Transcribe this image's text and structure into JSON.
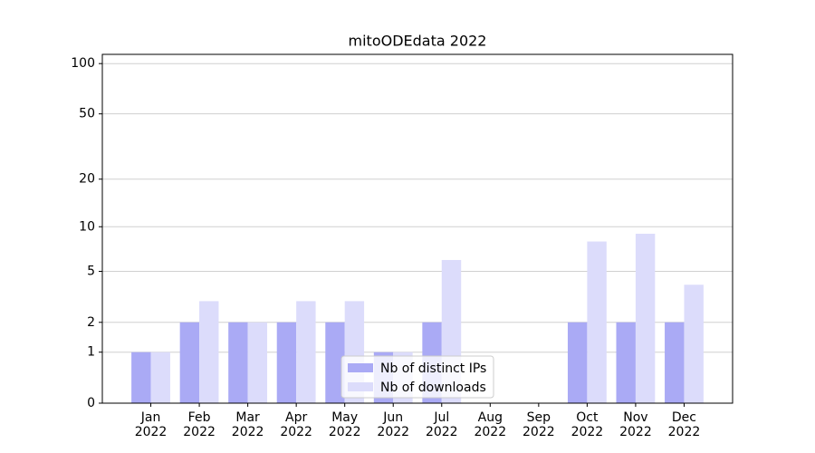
{
  "chart_data": {
    "type": "bar",
    "title": "mitoODEdata 2022",
    "categories": [
      [
        "Jan",
        "2022"
      ],
      [
        "Feb",
        "2022"
      ],
      [
        "Mar",
        "2022"
      ],
      [
        "Apr",
        "2022"
      ],
      [
        "May",
        "2022"
      ],
      [
        "Jun",
        "2022"
      ],
      [
        "Jul",
        "2022"
      ],
      [
        "Aug",
        "2022"
      ],
      [
        "Sep",
        "2022"
      ],
      [
        "Oct",
        "2022"
      ],
      [
        "Nov",
        "2022"
      ],
      [
        "Dec",
        "2022"
      ]
    ],
    "series": [
      {
        "name": "Nb of distinct IPs",
        "color": "#aaaaf5",
        "values": [
          1,
          2,
          2,
          2,
          2,
          1,
          2,
          0,
          0,
          2,
          2,
          2
        ]
      },
      {
        "name": "Nb of downloads",
        "color": "#dcdcfb",
        "values": [
          1,
          3,
          2,
          3,
          3,
          1,
          6,
          0,
          0,
          8,
          9,
          4
        ]
      }
    ],
    "yscale": "log1p",
    "ylim": [
      0,
      113.5
    ],
    "yticks": [
      0,
      1,
      2,
      5,
      10,
      20,
      50,
      100
    ],
    "grid": true,
    "legend": "lower center"
  }
}
